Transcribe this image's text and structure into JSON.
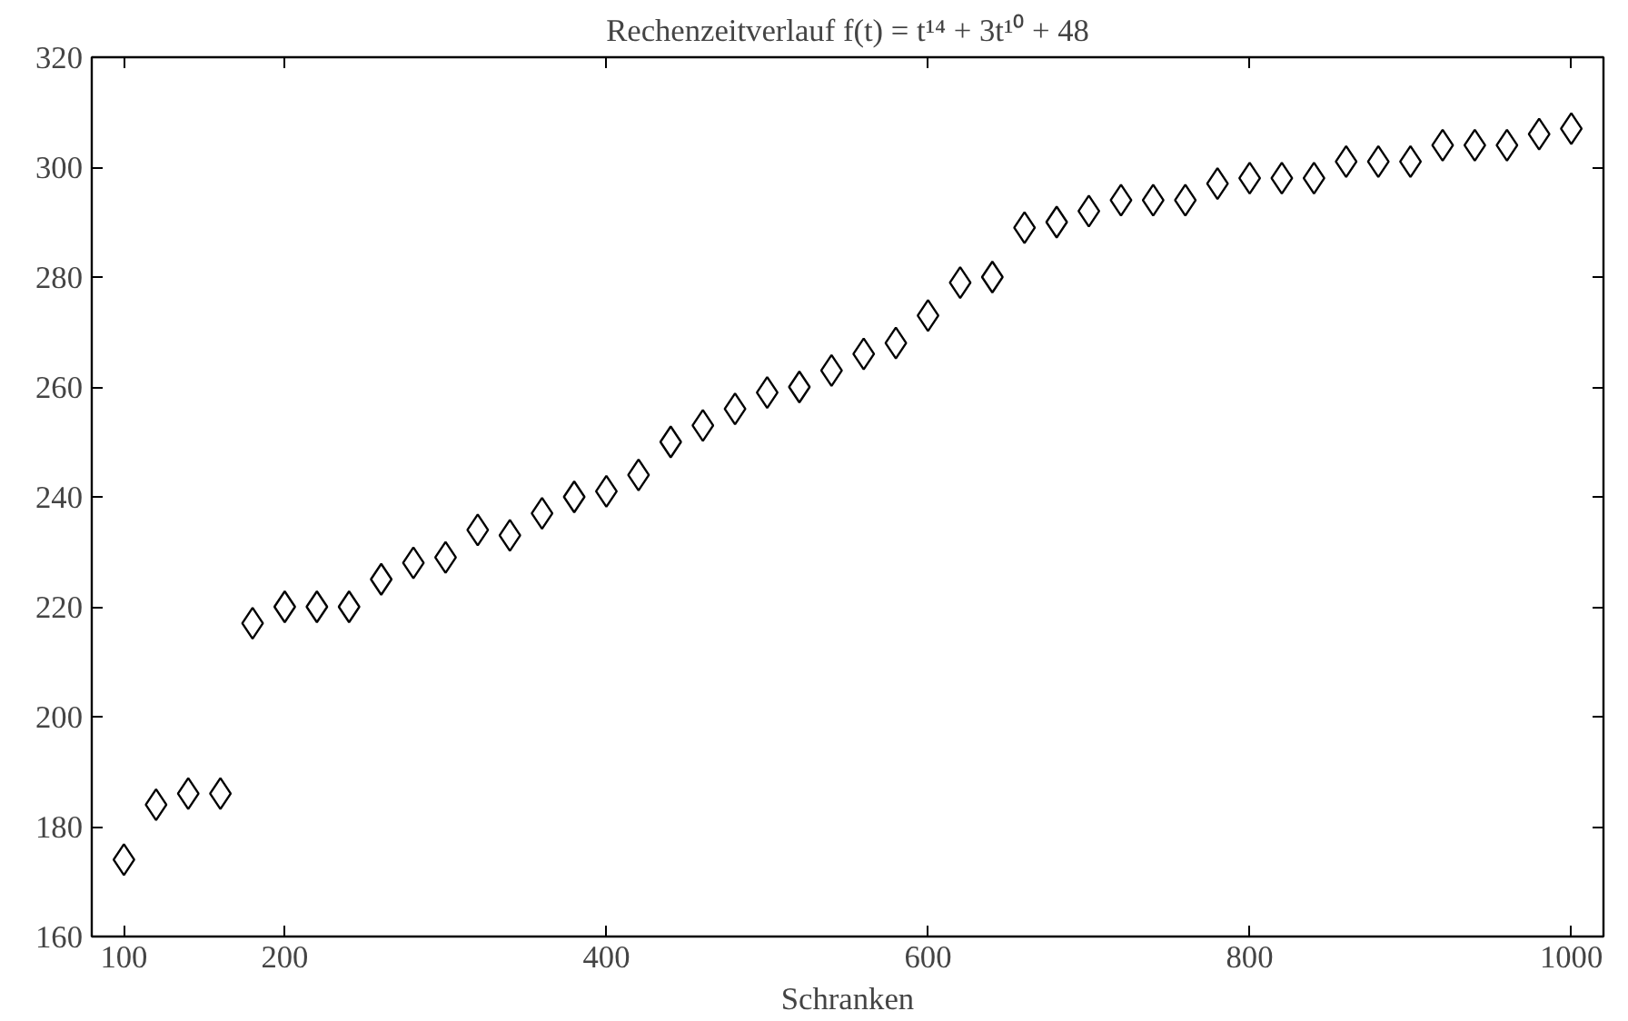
{
  "chart_data": {
    "type": "scatter",
    "title": "Rechenzeitverlauf f(t) = t¹⁴ + 3t¹⁰ + 48",
    "xlabel": "Schranken",
    "x": [
      100,
      120,
      140,
      160,
      180,
      200,
      220,
      240,
      260,
      280,
      300,
      320,
      340,
      360,
      380,
      400,
      420,
      440,
      460,
      480,
      500,
      520,
      540,
      560,
      580,
      600,
      620,
      640,
      660,
      680,
      700,
      720,
      740,
      760,
      780,
      800,
      820,
      840,
      860,
      880,
      900,
      920,
      940,
      960,
      980,
      1000
    ],
    "series": [
      {
        "color": "#000000",
        "values": [
          174,
          184,
          186,
          186,
          217,
          220,
          220,
          220,
          225,
          228,
          229,
          234,
          233,
          237,
          240,
          241,
          244,
          250,
          253,
          256,
          259,
          260,
          263,
          266,
          268,
          273,
          279,
          280,
          289,
          290,
          292,
          294,
          294,
          294,
          297,
          298,
          298,
          298,
          301,
          301,
          301,
          304,
          304,
          304,
          306,
          307
        ]
      }
    ],
    "xlim": [
      80,
      1020
    ],
    "ylim": [
      160,
      320
    ],
    "xticks": [
      100,
      200,
      400,
      600,
      800,
      1000
    ],
    "yticks": [
      160,
      180,
      200,
      220,
      240,
      260,
      280,
      300,
      320
    ],
    "grid": false,
    "marker": "diamond"
  }
}
